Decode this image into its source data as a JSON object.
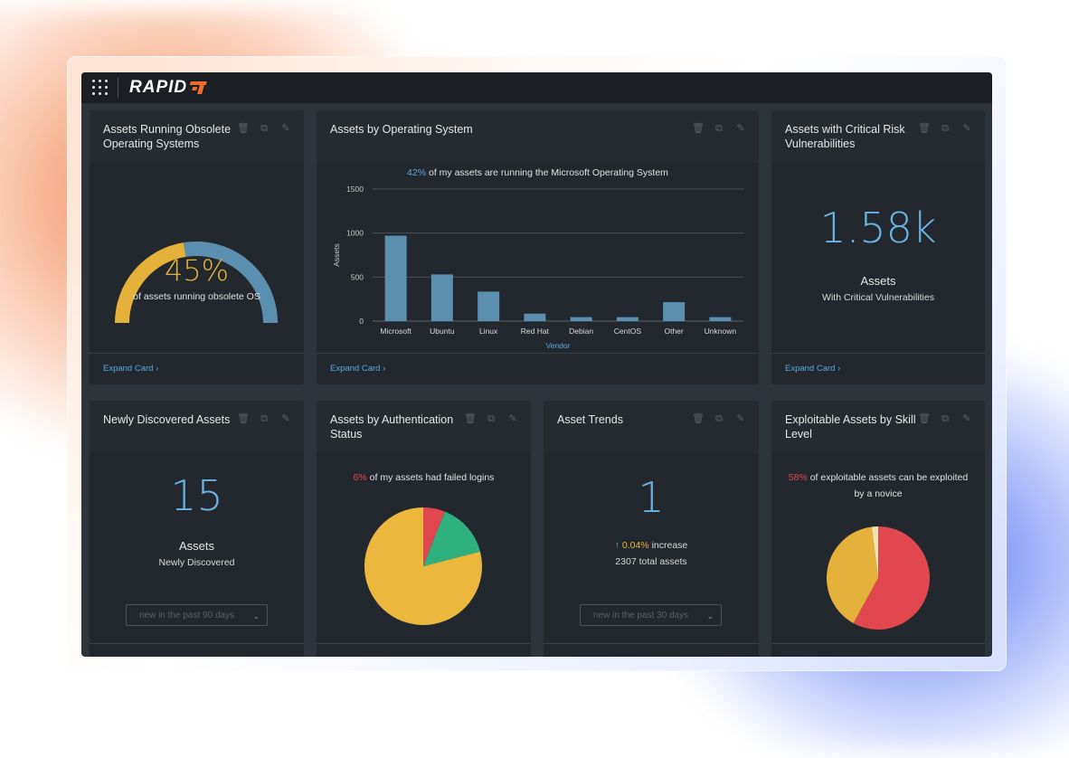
{
  "brand": {
    "name": "RAPID",
    "accent": "#ef6a2f"
  },
  "cards": {
    "obsolete_os": {
      "title": "Assets Running Obsolete Operating Systems",
      "percent": "45%",
      "caption": "of assets running obsolete OS",
      "expand": "Expand Card",
      "gauge_fraction": 0.45,
      "colors": {
        "filled": "#e4b13a",
        "rest": "#5b8fb0"
      }
    },
    "by_os": {
      "title": "Assets by Operating System",
      "headline_pct": "42%",
      "headline_text": "of my assets are running the Microsoft Operating System",
      "expand": "Expand Card"
    },
    "critical": {
      "title": "Assets with Critical Risk Vulnerabilities",
      "value": "1.58k",
      "label": "Assets",
      "sublabel": "With Critical Vulnerabilities",
      "expand": "Expand Card"
    },
    "newly": {
      "title": "Newly Discovered Assets",
      "value": "15",
      "label": "Assets",
      "sublabel": "Newly Discovered",
      "select": "new in the past 90 days"
    },
    "auth": {
      "title": "Assets by Authentication Status",
      "headline_pct": "6%",
      "headline_text": "of my assets had failed logins",
      "pie": [
        {
          "value": 6,
          "color": "#e0474f"
        },
        {
          "value": 15,
          "color": "#2fb07f"
        },
        {
          "value": 79,
          "color": "#ebb73c"
        }
      ]
    },
    "trends": {
      "title": "Asset Trends",
      "value": "1",
      "arrow": "↑",
      "change_pct": "0.04%",
      "change_text": "increase",
      "total": "2307 total assets",
      "select": "new in the past 30 days"
    },
    "exploitable": {
      "title": "Exploitable Assets by Skill Level",
      "headline_pct": "58%",
      "headline_text_1": "of exploitable assets can be exploited",
      "headline_text_2": "by a novice",
      "pie": [
        {
          "value": 58,
          "color": "#e0474f"
        },
        {
          "value": 40,
          "color": "#e4b13a"
        },
        {
          "value": 2,
          "color": "#efe4b0"
        }
      ]
    }
  },
  "chart_data": {
    "type": "bar",
    "categories": [
      "Microsoft",
      "Ubuntu",
      "Linux",
      "Red Hat",
      "Debian",
      "CentOS",
      "Other",
      "Unknown"
    ],
    "values": [
      970,
      530,
      335,
      85,
      45,
      45,
      215,
      45
    ],
    "xlabel": "Vendor",
    "ylabel": "Assets",
    "ylim": [
      0,
      1500
    ],
    "yticks": [
      0,
      500,
      1000,
      1500
    ],
    "bar_color": "#5b8fb0",
    "grid": true
  }
}
